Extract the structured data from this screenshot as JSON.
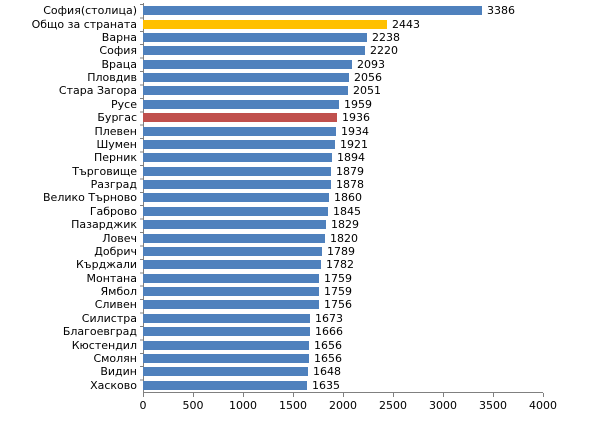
{
  "chart_data": {
    "type": "bar",
    "orientation": "horizontal",
    "title": "",
    "xlabel": "",
    "ylabel": "",
    "categories": [
      "София(столица)",
      "Общо за страната",
      "Варна",
      "София",
      "Враца",
      "Пловдив",
      "Стара Загора",
      "Русе",
      "Бургас",
      "Плевен",
      "Шумен",
      "Перник",
      "Търговище",
      "Разград",
      "Велико Търново",
      "Габрово",
      "Пазарджик",
      "Ловеч",
      "Добрич",
      "Кърджали",
      "Монтана",
      "Ямбол",
      "Сливен",
      "Силистра",
      "Благоевград",
      "Кюстендил",
      "Смолян",
      "Видин",
      "Хасково"
    ],
    "values": [
      3386,
      2443,
      2238,
      2220,
      2093,
      2056,
      2051,
      1959,
      1936,
      1934,
      1921,
      1894,
      1879,
      1878,
      1860,
      1845,
      1829,
      1820,
      1789,
      1782,
      1759,
      1759,
      1756,
      1673,
      1666,
      1656,
      1656,
      1648,
      1635
    ],
    "colors": [
      "#4F81BD",
      "#FFC000",
      "#4F81BD",
      "#4F81BD",
      "#4F81BD",
      "#4F81BD",
      "#4F81BD",
      "#4F81BD",
      "#C0504D",
      "#4F81BD",
      "#4F81BD",
      "#4F81BD",
      "#4F81BD",
      "#4F81BD",
      "#4F81BD",
      "#4F81BD",
      "#4F81BD",
      "#4F81BD",
      "#4F81BD",
      "#4F81BD",
      "#4F81BD",
      "#4F81BD",
      "#4F81BD",
      "#4F81BD",
      "#4F81BD",
      "#4F81BD",
      "#4F81BD",
      "#4F81BD",
      "#4F81BD"
    ],
    "default_bar_color": "#4F81BD",
    "highlight_colors": {
      "Общо за страната": "#FFC000",
      "Бургас": "#C0504D"
    },
    "x_ticks": [
      0,
      500,
      1000,
      1500,
      2000,
      2500,
      3000,
      3500,
      4000
    ],
    "xlim": [
      0,
      4000
    ],
    "grid": false,
    "value_labels": true,
    "legend": "none",
    "axis_color": "#808080",
    "text_color": "#000000"
  }
}
